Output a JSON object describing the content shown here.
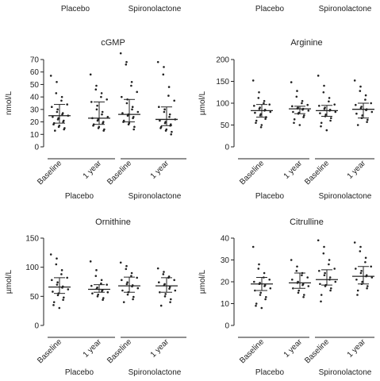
{
  "cropped_labels": [
    "Placebo",
    "Spironolactone",
    "Placebo",
    "Spironolactone"
  ],
  "chart_data": [
    {
      "type": "dotplot",
      "title": "cGMP",
      "y_label": "nmol/L",
      "categories": [
        "Baseline",
        "1 year",
        "Baseline",
        "1 year"
      ],
      "groups": [
        "Placebo",
        "Spironolactone"
      ],
      "ylim": [
        0,
        70
      ],
      "yticks": [
        0,
        10,
        20,
        30,
        40,
        50,
        60,
        70
      ],
      "values": [
        [
          57,
          52,
          43,
          40,
          37,
          34,
          32,
          30,
          28,
          27,
          26,
          25,
          24,
          23,
          22,
          21,
          20,
          19,
          18,
          17,
          16,
          15,
          14,
          13
        ],
        [
          58,
          49,
          46,
          43,
          40,
          38,
          36,
          33,
          30,
          28,
          26,
          24,
          23,
          22,
          21,
          20,
          19,
          18,
          17,
          16,
          15,
          14,
          13
        ],
        [
          75,
          68,
          66,
          52,
          49,
          44,
          40,
          38,
          35,
          32,
          30,
          28,
          27,
          26,
          25,
          24,
          23,
          21,
          20,
          19,
          18,
          16,
          14
        ],
        [
          68,
          64,
          58,
          48,
          41,
          37,
          32,
          30,
          28,
          26,
          24,
          22,
          21,
          20,
          19,
          18,
          17,
          16,
          15,
          14,
          13,
          12,
          10
        ]
      ],
      "median": [
        25,
        23,
        26,
        22
      ],
      "q1": [
        19,
        18,
        20,
        17
      ],
      "q3": [
        34,
        36,
        38,
        32
      ]
    },
    {
      "type": "dotplot",
      "title": "Arginine",
      "y_label": "µmol/L",
      "categories": [
        "Baseline",
        "1 year",
        "Baseline",
        "1 year"
      ],
      "groups": [
        "Placebo",
        "Spironolactone"
      ],
      "ylim": [
        0,
        200
      ],
      "yticks": [
        0,
        50,
        100,
        150,
        200
      ],
      "values": [
        [
          152,
          125,
          112,
          105,
          100,
          97,
          94,
          90,
          87,
          85,
          83,
          80,
          78,
          75,
          72,
          68,
          64,
          60,
          55,
          50,
          45
        ],
        [
          148,
          128,
          115,
          105,
          100,
          96,
          93,
          90,
          88,
          87,
          85,
          83,
          80,
          78,
          76,
          72,
          68,
          63,
          55,
          50
        ],
        [
          163,
          140,
          125,
          112,
          104,
          97,
          94,
          90,
          87,
          85,
          83,
          80,
          77,
          74,
          70,
          66,
          60,
          55,
          47,
          38
        ],
        [
          152,
          138,
          128,
          118,
          108,
          100,
          96,
          92,
          89,
          86,
          84,
          80,
          76,
          72,
          66,
          62,
          57,
          50
        ]
      ],
      "median": [
        83,
        87,
        83,
        86
      ],
      "q1": [
        68,
        76,
        70,
        66
      ],
      "q3": [
        97,
        93,
        95,
        100
      ]
    },
    {
      "type": "dotplot",
      "title": "Ornithine",
      "y_label": "µmol/L",
      "categories": [
        "Baseline",
        "1 year",
        "Baseline",
        "1 year"
      ],
      "groups": [
        "Placebo",
        "Spironolactone"
      ],
      "ylim": [
        0,
        150
      ],
      "yticks": [
        0,
        50,
        100,
        150
      ],
      "values": [
        [
          122,
          115,
          105,
          95,
          88,
          82,
          78,
          74,
          70,
          67,
          65,
          62,
          58,
          55,
          52,
          48,
          44,
          40,
          35,
          30
        ],
        [
          110,
          95,
          85,
          78,
          72,
          70,
          68,
          65,
          63,
          61,
          59,
          57,
          55,
          53,
          50,
          47,
          44
        ],
        [
          108,
          102,
          97,
          90,
          85,
          82,
          78,
          74,
          71,
          69,
          67,
          64,
          60,
          57,
          53,
          49,
          45,
          40
        ],
        [
          98,
          92,
          88,
          84,
          82,
          78,
          74,
          71,
          69,
          66,
          63,
          60,
          57,
          54,
          50,
          45,
          40,
          34
        ]
      ],
      "median": [
        66,
        62,
        68,
        68
      ],
      "q1": [
        55,
        57,
        57,
        57
      ],
      "q3": [
        82,
        70,
        83,
        82
      ]
    },
    {
      "type": "dotplot",
      "title": "Citrulline",
      "y_label": "µmol/L",
      "categories": [
        "Baseline",
        "1 year",
        "Baseline",
        "1 year"
      ],
      "groups": [
        "Placebo",
        "Spironolactone"
      ],
      "ylim": [
        0,
        40
      ],
      "yticks": [
        0,
        10,
        20,
        30,
        40
      ],
      "values": [
        [
          36,
          28,
          26,
          24,
          22,
          21,
          20,
          19.5,
          19,
          18.5,
          18,
          17,
          16,
          15,
          14,
          13,
          12,
          10,
          9,
          8
        ],
        [
          30,
          27,
          25,
          24,
          23,
          22,
          21,
          20,
          19.5,
          19,
          18.5,
          18,
          17,
          16,
          15,
          14,
          13
        ],
        [
          39,
          36,
          33,
          30,
          28,
          26,
          25,
          24,
          23,
          22,
          21,
          20,
          19,
          18.5,
          18,
          17,
          16,
          14,
          11
        ],
        [
          38,
          36,
          34,
          31,
          29,
          27,
          26,
          25,
          24,
          23,
          22.5,
          22,
          21,
          20,
          19,
          18,
          17,
          16,
          14
        ]
      ],
      "median": [
        19,
        19.5,
        21,
        22.5
      ],
      "q1": [
        16,
        17,
        18.5,
        19
      ],
      "q3": [
        22,
        24,
        25.5,
        27
      ]
    }
  ]
}
